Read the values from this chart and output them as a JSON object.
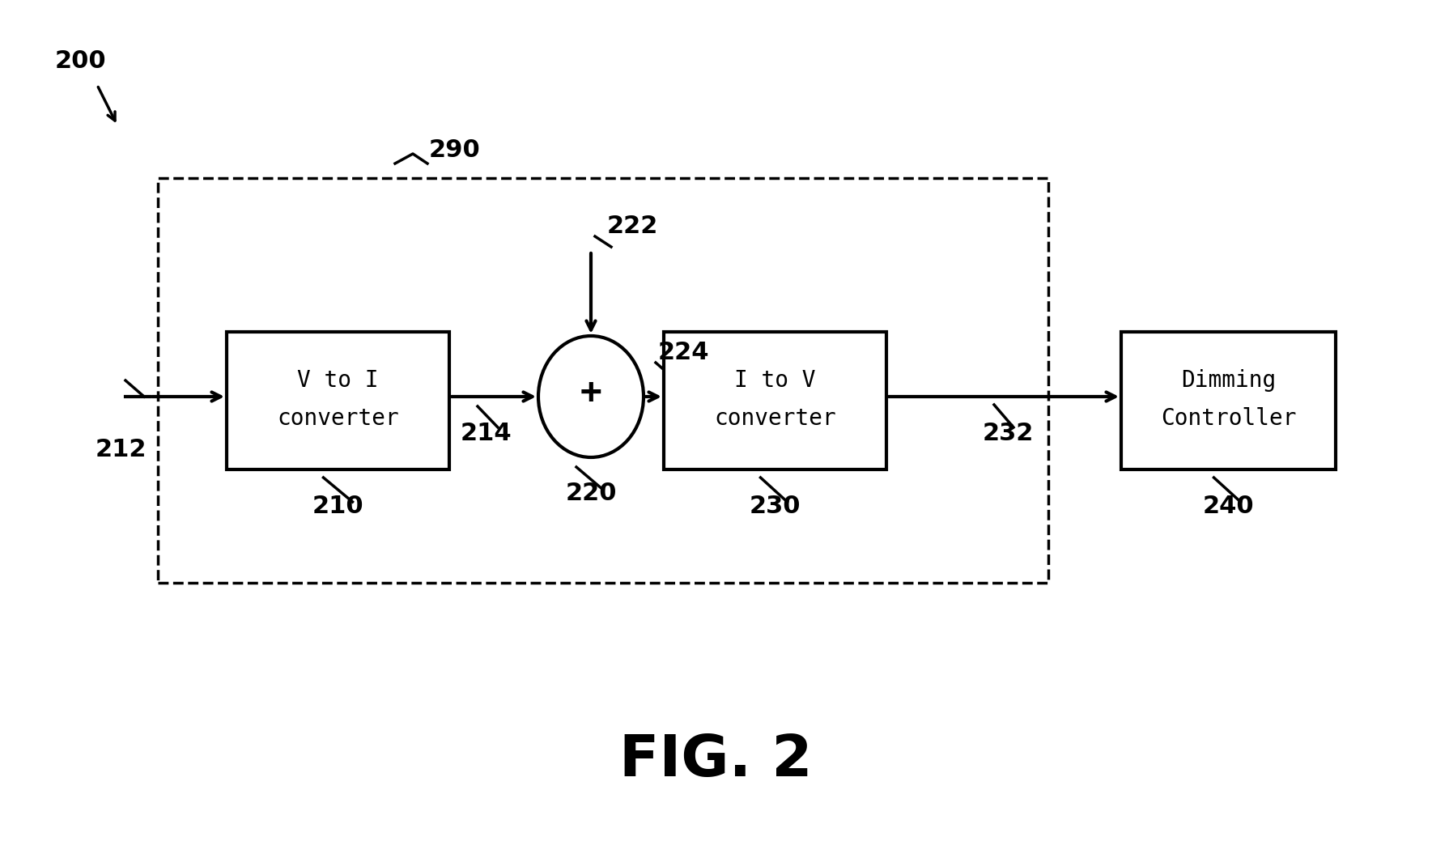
{
  "bg_color": "#ffffff",
  "fig_width": 17.69,
  "fig_height": 10.6,
  "dpi": 100,
  "label_200": "200",
  "label_290": "290",
  "label_210": "210",
  "label_220": "220",
  "label_222": "222",
  "label_224": "224",
  "label_212": "212",
  "label_214": "214",
  "label_230": "230",
  "label_232": "232",
  "label_240": "240",
  "label_fig": "FIG. 2",
  "box210_text_line1": "V to I",
  "box210_text_line2": "converter",
  "box230_text_line1": "I to V",
  "box230_text_line2": "converter",
  "box240_text_line1": "Dimming",
  "box240_text_line2": "Controller",
  "summing_symbol": "+"
}
